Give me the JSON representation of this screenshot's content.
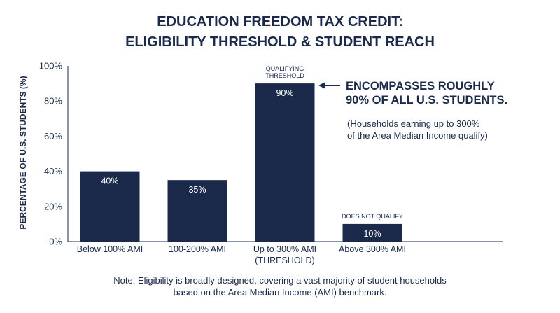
{
  "chart_data": {
    "type": "bar",
    "title_lines": [
      "EDUCATION FREEDOM TAX CREDIT:",
      "ELIGIBILITY THRESHOLD & STUDENT REACH"
    ],
    "ylabel": "PERCENTAGE OF U.S. STUDENTS (%)",
    "xlabel": "",
    "ylim": [
      0,
      100
    ],
    "yticks": [
      "0%",
      "20%",
      "40%",
      "60%",
      "80%",
      "100%"
    ],
    "categories": [
      [
        "Below 100% AMI"
      ],
      [
        "100-200% AMI"
      ],
      [
        "Up to 300% AMI",
        "(THRESHOLD)"
      ],
      [
        "Above 300% AMI"
      ]
    ],
    "values": [
      40,
      35,
      90,
      10
    ],
    "value_labels": [
      "40%",
      "35%",
      "90%",
      "10%"
    ],
    "bar_color": "#1b2a4a",
    "annotations": {
      "threshold_tag": [
        "QUALIFYING",
        "THRESHOLD"
      ],
      "not_qualify_tag": "DOES NOT QUALIFY",
      "callout_headline": [
        "ENCOMPASSES ROUGHLY",
        "90% OF ALL U.S. STUDENTS."
      ],
      "callout_sub": [
        "(Households earning up to 300%",
        "of the Area Median Income qualify)"
      ]
    },
    "note_lines": [
      "Note: Eligibility is broadly designed, covering a vast majority of student households",
      "based on the Area Median Income (AMI) benchmark."
    ],
    "grid": false
  }
}
